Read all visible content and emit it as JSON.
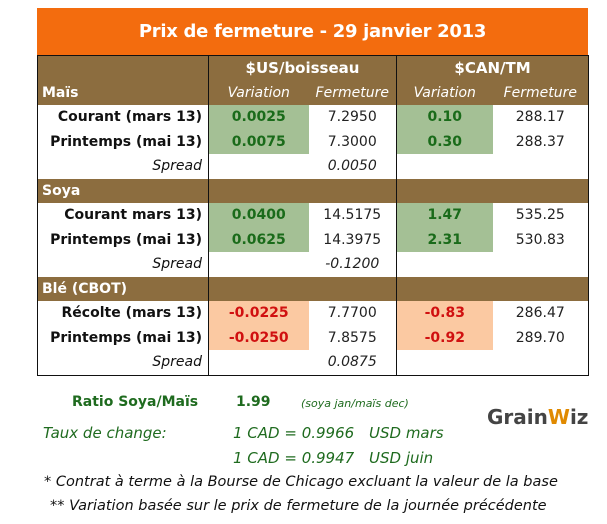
{
  "title": "Prix de fermeture - 29 janvier 2013",
  "headers": {
    "us": "$US/boisseau",
    "can": "$CAN/TM",
    "variation": "Variation",
    "fermeture": "Fermeture"
  },
  "colors": {
    "title_bg": "#F36C0E",
    "header_bg": "#8C6D3F",
    "positive_bg": "#A4C095",
    "positive_text": "#1A6B1A",
    "negative_bg": "#FBC9A2",
    "negative_text": "#D01010"
  },
  "sections": [
    {
      "name": "Maïs",
      "rows": [
        {
          "label": "Courant (mars 13)",
          "us_var": "0.0025",
          "us_close": "7.2950",
          "can_var": "0.10",
          "can_close": "288.17",
          "sign": "pos"
        },
        {
          "label": "Printemps (mai 13)",
          "us_var": "0.0075",
          "us_close": "7.3000",
          "can_var": "0.30",
          "can_close": "288.37",
          "sign": "pos"
        }
      ],
      "spread_label": "Spread",
      "spread": "0.0050"
    },
    {
      "name": "Soya",
      "rows": [
        {
          "label": "Courant mars 13)",
          "us_var": "0.0400",
          "us_close": "14.5175",
          "can_var": "1.47",
          "can_close": "535.25",
          "sign": "pos"
        },
        {
          "label": "Printemps (mai 13)",
          "us_var": "0.0625",
          "us_close": "14.3975",
          "can_var": "2.31",
          "can_close": "530.83",
          "sign": "pos"
        }
      ],
      "spread_label": "Spread",
      "spread": "-0.1200"
    },
    {
      "name": "Blé (CBOT)",
      "rows": [
        {
          "label": "Récolte (mars 13)",
          "us_var": "-0.0225",
          "us_close": "7.7700",
          "can_var": "-0.83",
          "can_close": "286.47",
          "sign": "neg"
        },
        {
          "label": "Printemps (mai 13)",
          "us_var": "-0.0250",
          "us_close": "7.8575",
          "can_var": "-0.92",
          "can_close": "289.70",
          "sign": "neg"
        }
      ],
      "spread_label": "Spread",
      "spread": "0.0875"
    }
  ],
  "ratio": {
    "label": "Ratio Soya/Maïs",
    "value": "1.99",
    "note": "(soya jan/maïs dec)"
  },
  "exchange": {
    "label": "Taux de change:",
    "rates": [
      {
        "eq": "1 CAD =  0.9966",
        "unit": "USD mars"
      },
      {
        "eq": "1 CAD =  0.9947",
        "unit": "USD juin"
      }
    ]
  },
  "notes": [
    "* Contrat à terme à la Bourse de Chicago excluant la valeur de la base",
    "** Variation basée sur le prix de fermeture de la journée précédente"
  ],
  "logo": "GrainWiz"
}
